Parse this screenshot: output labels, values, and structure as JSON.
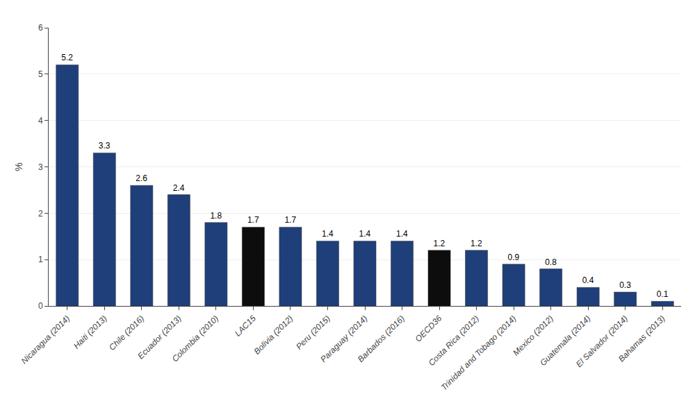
{
  "chart_data": {
    "type": "bar",
    "categories": [
      "Nicaragua (2014)",
      "Haiti (2013)",
      "Chile (2016)",
      "Ecuador (2013)",
      "Colombia (2010)",
      "LAC15",
      "Bolivia (2012)",
      "Peru (2015)",
      "Paraguay (2014)",
      "Barbados (2016)",
      "OECD36",
      "Costa Rica (2012)",
      "Trinidad and Tobago (2014)",
      "Mexico (2012)",
      "Guatemala (2014)",
      "El Salvador (2014)",
      "Bahamas (2013)"
    ],
    "values": [
      5.2,
      3.3,
      2.6,
      2.4,
      1.8,
      1.7,
      1.7,
      1.4,
      1.4,
      1.4,
      1.2,
      1.2,
      0.9,
      0.8,
      0.4,
      0.3,
      0.1
    ],
    "colors": [
      "#1f3f7a",
      "#1f3f7a",
      "#1f3f7a",
      "#1f3f7a",
      "#1f3f7a",
      "#0d0d0d",
      "#1f3f7a",
      "#1f3f7a",
      "#1f3f7a",
      "#1f3f7a",
      "#0d0d0d",
      "#1f3f7a",
      "#1f3f7a",
      "#1f3f7a",
      "#1f3f7a",
      "#1f3f7a",
      "#1f3f7a"
    ],
    "ylabel": "%",
    "ylim": [
      0,
      6
    ],
    "yticks": [
      0,
      1,
      2,
      3,
      4,
      5,
      6
    ],
    "grid": true,
    "data_labels": true
  }
}
